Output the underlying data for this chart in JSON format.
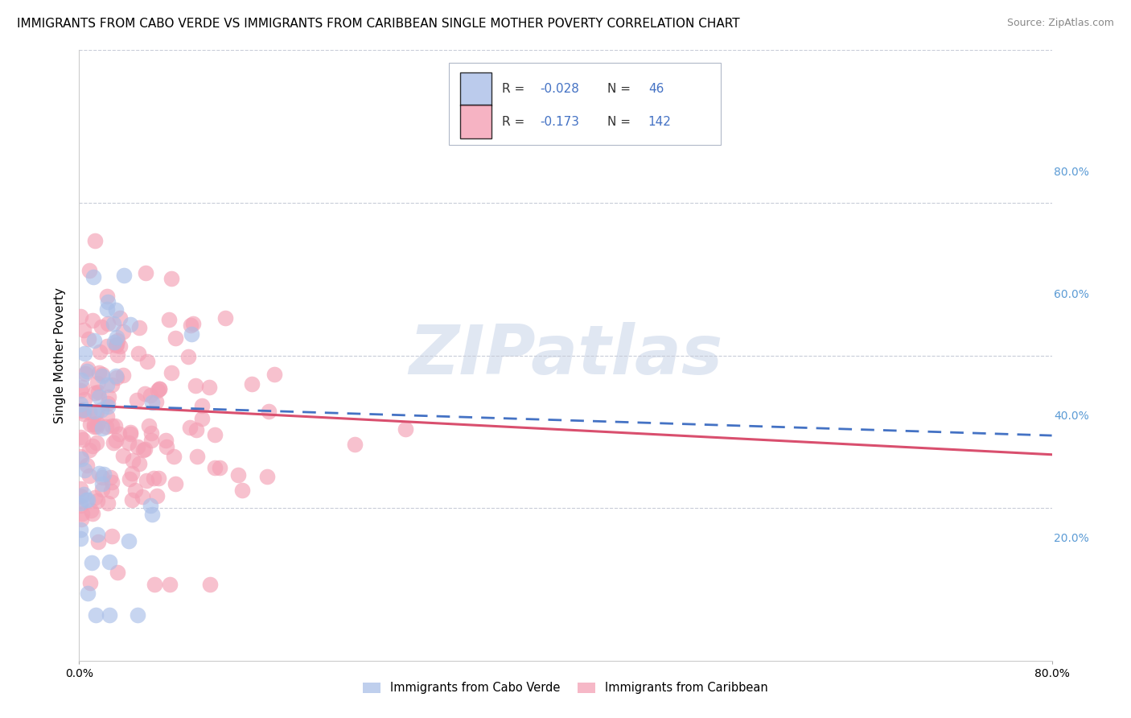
{
  "title": "IMMIGRANTS FROM CABO VERDE VS IMMIGRANTS FROM CARIBBEAN SINGLE MOTHER POVERTY CORRELATION CHART",
  "source": "Source: ZipAtlas.com",
  "ylabel": "Single Mother Poverty",
  "R1": -0.028,
  "N1": 46,
  "R2": -0.173,
  "N2": 142,
  "xlim": [
    0.0,
    0.8
  ],
  "ylim": [
    0.0,
    0.8
  ],
  "ytick_positions": [
    0.2,
    0.4,
    0.6,
    0.8
  ],
  "right_ytick_labels": [
    "20.0%",
    "40.0%",
    "60.0%",
    "80.0%"
  ],
  "color_cabo": "#aabfe8",
  "color_caribbean": "#f4a0b5",
  "trend_color_cabo": "#4472c4",
  "trend_color_caribbean": "#d94f6e",
  "background_color": "#ffffff",
  "watermark": "ZIPatlas",
  "watermark_color": "#c8d4e8",
  "grid_color": "#c8ccd8",
  "title_fontsize": 11,
  "source_fontsize": 9,
  "legend_r1": "-0.028",
  "legend_n1": "46",
  "legend_r2": "-0.173",
  "legend_n2": "142",
  "legend_text_color": "#4472c4",
  "legend_label_color": "#333333"
}
